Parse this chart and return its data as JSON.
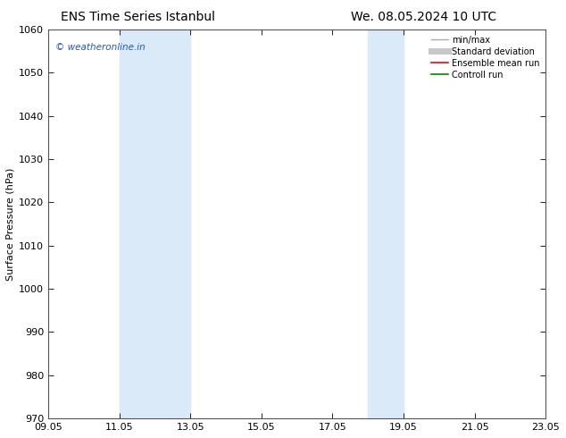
{
  "title_left": "ENS Time Series Istanbul",
  "title_right": "We. 08.05.2024 10 UTC",
  "ylabel": "Surface Pressure (hPa)",
  "ylim": [
    970,
    1060
  ],
  "yticks": [
    970,
    980,
    990,
    1000,
    1010,
    1020,
    1030,
    1040,
    1050,
    1060
  ],
  "xlim": [
    0,
    14
  ],
  "xtick_labels": [
    "09.05",
    "11.05",
    "13.05",
    "15.05",
    "17.05",
    "19.05",
    "21.05",
    "23.05"
  ],
  "xtick_positions": [
    0,
    2,
    4,
    6,
    8,
    10,
    12,
    14
  ],
  "shade_bands": [
    {
      "start": 2.0,
      "end": 4.0
    },
    {
      "start": 9.0,
      "end": 10.0
    }
  ],
  "shade_color": "#daeaf8",
  "watermark": "© weatheronline.in",
  "watermark_color": "#2255cc",
  "legend_labels": [
    "min/max",
    "Standard deviation",
    "Ensemble mean run",
    "Controll run"
  ],
  "legend_colors": [
    "#aaaaaa",
    "#c8c8c8",
    "#ff0000",
    "#008800"
  ],
  "bg_color": "#ffffff",
  "title_fontsize": 10,
  "tick_fontsize": 8,
  "ylabel_fontsize": 8,
  "legend_fontsize": 7,
  "spine_color": "#555555"
}
